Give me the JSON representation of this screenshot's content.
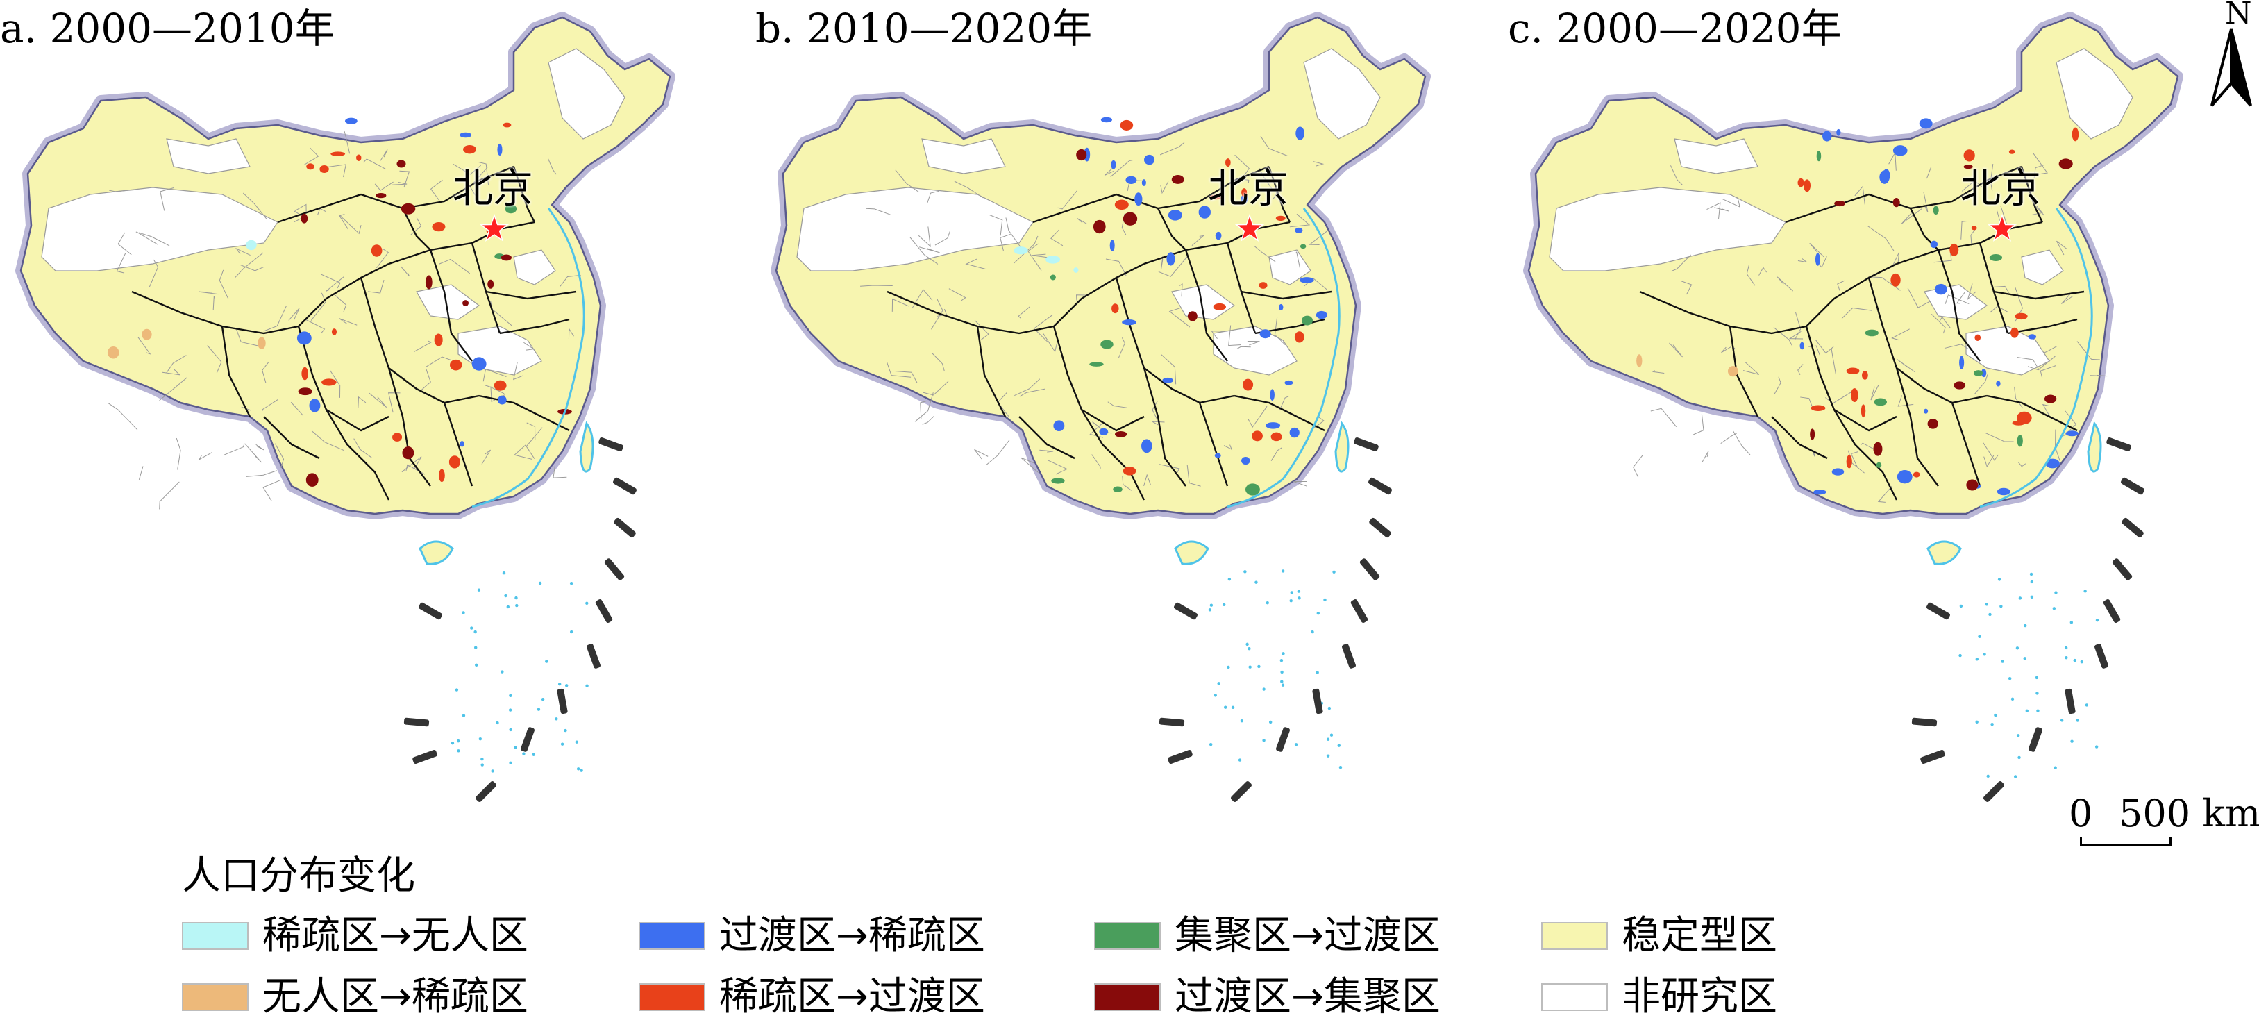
{
  "panels": [
    {
      "title": "a. 2000—2010年",
      "capital": "北京"
    },
    {
      "title": "b. 2010—2020年",
      "capital": "北京"
    },
    {
      "title": "c. 2000—2020年",
      "capital": "北京"
    }
  ],
  "north_arrow": {
    "letter": "N"
  },
  "scale_bar": {
    "zero": "0",
    "distance": "500 km"
  },
  "legend": {
    "title": "人口分布变化",
    "items": [
      {
        "label": "稀疏区→无人区",
        "color": "#b9f6f6"
      },
      {
        "label": "无人区→稀疏区",
        "color": "#edb97a"
      },
      {
        "label": "过渡区→稀疏区",
        "color": "#3d6ff0"
      },
      {
        "label": "稀疏区→过渡区",
        "color": "#e8411a"
      },
      {
        "label": "集聚区→过渡区",
        "color": "#4a9e5c"
      },
      {
        "label": "过渡区→集聚区",
        "color": "#870b0b"
      },
      {
        "label": "稳定型区",
        "color": "#f7f5b0"
      },
      {
        "label": "非研究区",
        "color": "#ffffff"
      }
    ]
  },
  "colors": {
    "stable": "#f7f5b0",
    "non_study": "#ffffff",
    "border_halo": "#b9b6d6",
    "province_border": "#111111",
    "county_border": "#9a9a9a",
    "sea_outline": "#4fc3e8",
    "capital_star": "#ff2222"
  }
}
